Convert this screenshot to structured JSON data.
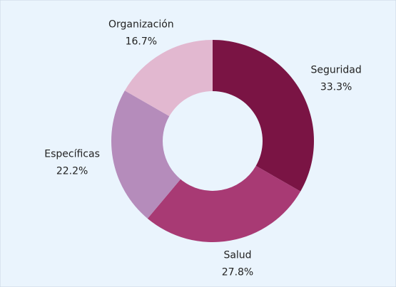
{
  "chart_data": {
    "type": "donut",
    "categories": [
      "Seguridad",
      "Salud",
      "Específicas",
      "Organización"
    ],
    "values": [
      33.3,
      27.8,
      22.2,
      16.7
    ],
    "value_labels": [
      "33.3%",
      "27.8%",
      "22.2%",
      "16.7%"
    ],
    "colors": [
      "#7a1444",
      "#a83a74",
      "#b58cbb",
      "#e2b8d0"
    ]
  }
}
